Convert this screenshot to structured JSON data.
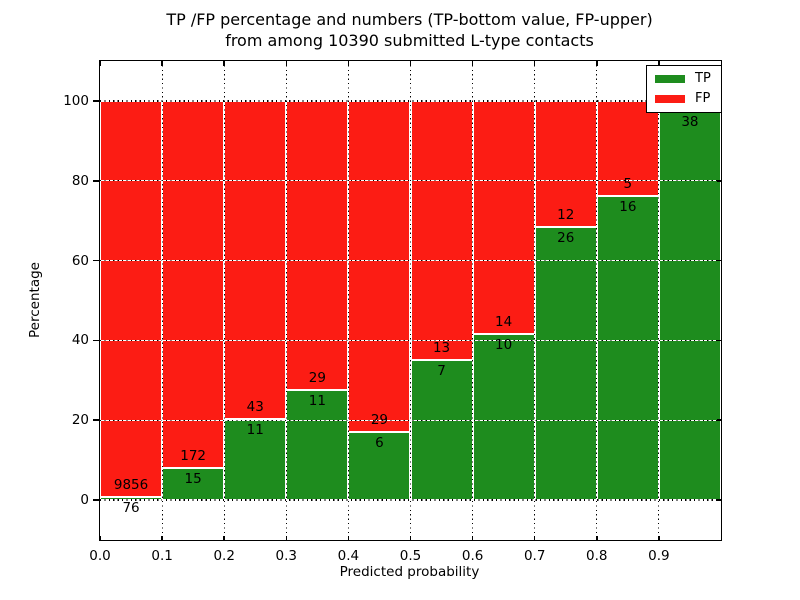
{
  "figure": {
    "title_line1": "TP /FP percentage and numbers (TP-bottom value, FP-upper)",
    "title_line2": "from among 10390 submitted L-type contacts",
    "xlabel": "Predicted probability",
    "ylabel": "Percentage"
  },
  "legend": {
    "position": "upper right",
    "items": [
      {
        "label": "TP",
        "color": "#1e8c1e"
      },
      {
        "label": "FP",
        "color": "#fc1c14"
      }
    ]
  },
  "chart_data": {
    "type": "bar",
    "stacked": true,
    "normalized_to_percent": true,
    "title": "TP /FP percentage and numbers (TP-bottom value, FP-upper) from among 10390 submitted L-type contacts",
    "xlabel": "Predicted probability",
    "ylabel": "Percentage",
    "total_contacts": 10390,
    "xlim": [
      0.0,
      1.0
    ],
    "ylim": [
      -10,
      110
    ],
    "x_ticks": [
      "0.0",
      "0.1",
      "0.2",
      "0.3",
      "0.4",
      "0.5",
      "0.6",
      "0.7",
      "0.8",
      "0.9"
    ],
    "y_ticks": [
      "0",
      "20",
      "40",
      "60",
      "80",
      "100"
    ],
    "grid": "dotted-black-on-white",
    "colors": {
      "tp": "#1e8c1e",
      "fp": "#fc1c14",
      "edge": "#ffffff"
    },
    "bars": [
      {
        "x_range": [
          0.0,
          0.1
        ],
        "tp": 76,
        "fp": 9856,
        "tp_pct": 0.77,
        "fp_label_visible": true
      },
      {
        "x_range": [
          0.1,
          0.2
        ],
        "tp": 15,
        "fp": 172,
        "tp_pct": 8.02,
        "fp_label_visible": true
      },
      {
        "x_range": [
          0.2,
          0.3
        ],
        "tp": 11,
        "fp": 43,
        "tp_pct": 20.37,
        "fp_label_visible": true
      },
      {
        "x_range": [
          0.3,
          0.4
        ],
        "tp": 11,
        "fp": 29,
        "tp_pct": 27.5,
        "fp_label_visible": true
      },
      {
        "x_range": [
          0.4,
          0.5
        ],
        "tp": 6,
        "fp": 29,
        "tp_pct": 17.14,
        "fp_label_visible": true
      },
      {
        "x_range": [
          0.5,
          0.6
        ],
        "tp": 7,
        "fp": 13,
        "tp_pct": 35.0,
        "fp_label_visible": true
      },
      {
        "x_range": [
          0.6,
          0.7
        ],
        "tp": 10,
        "fp": 14,
        "tp_pct": 41.67,
        "fp_label_visible": true
      },
      {
        "x_range": [
          0.7,
          0.8
        ],
        "tp": 26,
        "fp": 12,
        "tp_pct": 68.42,
        "fp_label_visible": true
      },
      {
        "x_range": [
          0.8,
          0.9
        ],
        "tp": 16,
        "fp": 5,
        "tp_pct": 76.19,
        "fp_label_visible": true
      },
      {
        "x_range": [
          0.9,
          1.0
        ],
        "tp": 38,
        "fp": 1,
        "tp_pct": 97.44,
        "fp_label_visible": false
      }
    ]
  }
}
